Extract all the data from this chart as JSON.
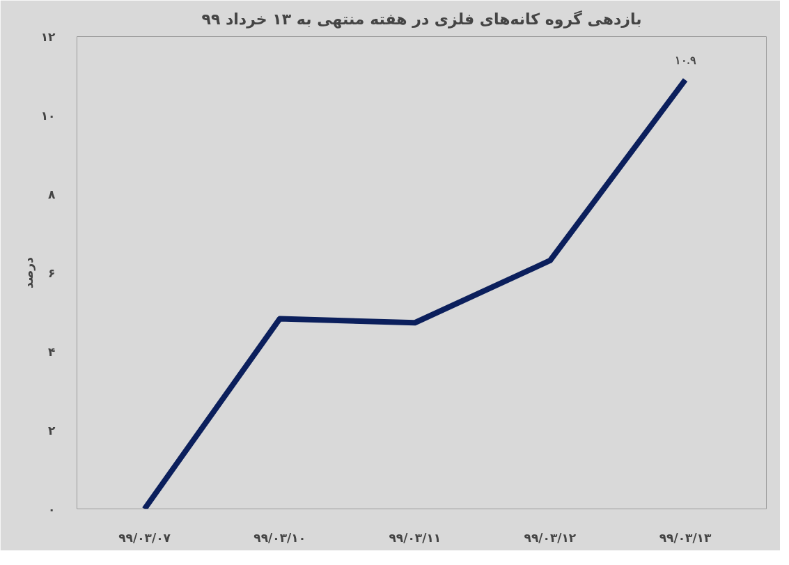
{
  "chart_data": {
    "type": "line",
    "title": "بازدهی گروه کانه‌های فلزی در هفته منتهی به ۱۳ خرداد ۹۹",
    "ylabel": "درصد",
    "categories": [
      "۹۹/۰۳/۰۷",
      "۹۹/۰۳/۱۰",
      "۹۹/۰۳/۱۱",
      "۹۹/۰۳/۱۲",
      "۹۹/۰۳/۱۳"
    ],
    "series": [
      {
        "color": "#0b1f5c",
        "values": [
          0,
          4.83,
          4.73,
          6.31,
          10.9
        ],
        "value_labels": [
          null,
          null,
          null,
          null,
          "۱۰.۹"
        ]
      }
    ],
    "ylim": [
      0,
      12
    ],
    "yticks": [
      {
        "value": 0,
        "label": "۰"
      },
      {
        "value": 2,
        "label": "۲"
      },
      {
        "value": 4,
        "label": "۴"
      },
      {
        "value": 6,
        "label": "۶"
      },
      {
        "value": 8,
        "label": "۸"
      },
      {
        "value": 10,
        "label": "۱۰"
      },
      {
        "value": 12,
        "label": "۱۲"
      }
    ],
    "grid": false,
    "marker": "none",
    "line_style": "solid"
  }
}
